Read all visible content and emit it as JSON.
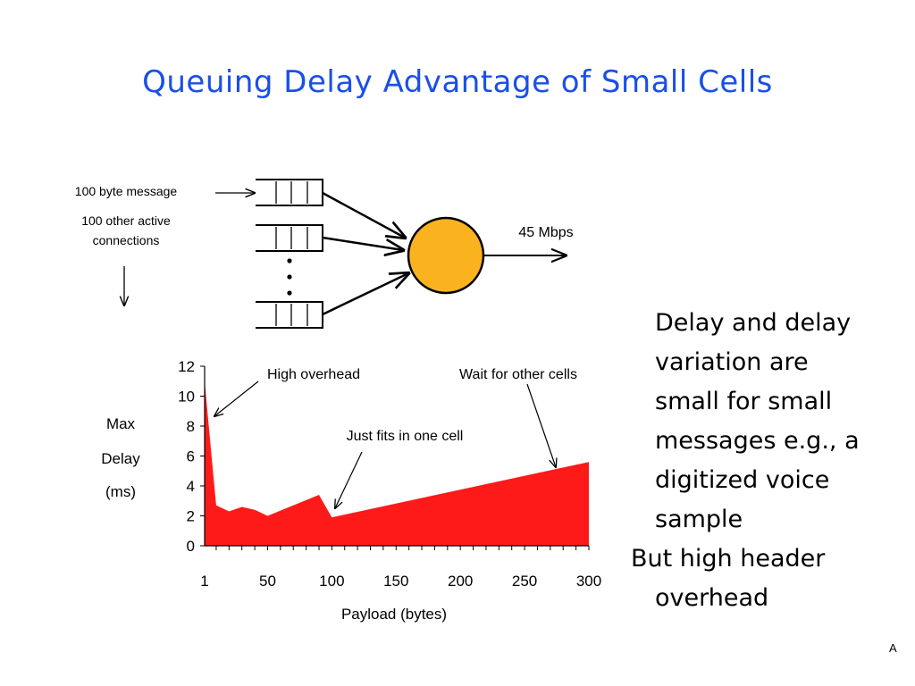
{
  "title": "Queuing Delay Advantage of Small Cells",
  "diagram": {
    "message_label": "100 byte message",
    "connections_label_line1": "100 other active",
    "connections_label_line2": "connections",
    "link_label": "45 Mbps",
    "server_color": "#fbb21f"
  },
  "chart_data": {
    "type": "area",
    "title": "",
    "xlabel": "Payload (bytes)",
    "ylabel_lines": [
      "Max",
      "Delay",
      "(ms)"
    ],
    "xlim": [
      1,
      300
    ],
    "ylim": [
      0,
      12
    ],
    "x_ticks": [
      1,
      50,
      100,
      150,
      200,
      250,
      300
    ],
    "y_ticks": [
      0,
      2,
      4,
      6,
      8,
      10,
      12
    ],
    "fill_color": "#ff1a1a",
    "grid": false,
    "series": [
      {
        "x": [
          1,
          10,
          20,
          30,
          40,
          50,
          90,
          100,
          300
        ],
        "y": [
          11,
          2.7,
          2.3,
          2.6,
          2.4,
          2.0,
          3.4,
          1.9,
          5.6
        ]
      }
    ],
    "annotations": [
      {
        "text": "High overhead",
        "x": 8,
        "y": 8.5
      },
      {
        "text": "Just fits in one cell",
        "x": 100,
        "y": 2.3
      },
      {
        "text": "Wait for other cells",
        "x": 275,
        "y": 5.1
      }
    ]
  },
  "bullets": {
    "b1_lines": [
      "Delay and delay",
      "variation are",
      "small for small",
      "messages e.g., a",
      "digitized voice",
      "sample"
    ],
    "b2_line1": "But high header",
    "b2_line2": "overhead"
  },
  "slide_code": "A"
}
